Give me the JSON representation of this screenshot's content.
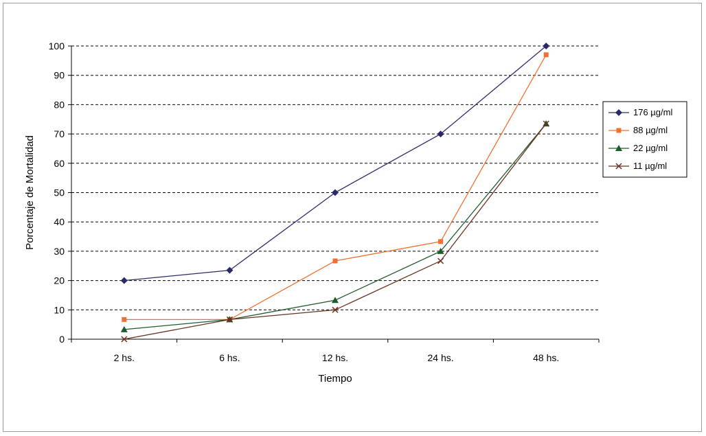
{
  "chart_data": {
    "type": "line",
    "title": "",
    "xlabel": "Tiempo",
    "ylabel": "Porcentaje de Mortalidad",
    "categories": [
      "2 hs.",
      "6 hs.",
      "12 hs.",
      "24 hs.",
      "48 hs."
    ],
    "ylim": [
      0,
      100
    ],
    "yticks": [
      0,
      10,
      20,
      30,
      40,
      50,
      60,
      70,
      80,
      90,
      100
    ],
    "grid": "horizontal dashed",
    "legend_position": "right",
    "series": [
      {
        "name": "176 µg/ml",
        "color": "#2a2a6a",
        "marker": "diamond",
        "values": [
          20,
          23.5,
          50,
          70,
          100
        ]
      },
      {
        "name": "88 µg/ml",
        "color": "#f07030",
        "marker": "square",
        "values": [
          6.7,
          6.7,
          26.7,
          33.3,
          97
        ]
      },
      {
        "name": "22 µg/ml",
        "color": "#1f5a2a",
        "marker": "triangle",
        "values": [
          3.3,
          6.7,
          13.3,
          30,
          73.5
        ]
      },
      {
        "name": "11 µg/ml",
        "color": "#6a3020",
        "marker": "x",
        "values": [
          0,
          6.7,
          10,
          26.7,
          73.5
        ]
      }
    ]
  }
}
